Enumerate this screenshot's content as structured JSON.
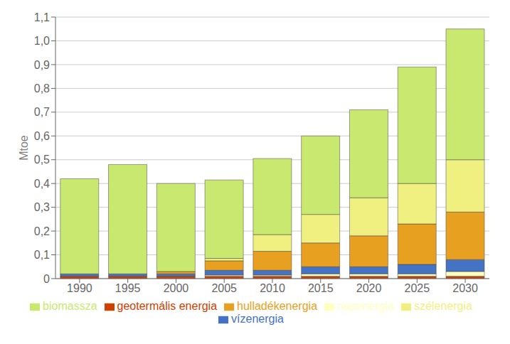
{
  "chart_data": {
    "type": "bar",
    "stacked": true,
    "categories": [
      "1990",
      "1995",
      "2000",
      "2005",
      "2010",
      "2015",
      "2020",
      "2025",
      "2030"
    ],
    "series": [
      {
        "name": "geotermális energia",
        "color": "#d04000",
        "values": [
          0.01,
          0.01,
          0.01,
          0.01,
          0.01,
          0.01,
          0.01,
          0.01,
          0.01
        ]
      },
      {
        "name": "napenergia",
        "color": "#ffffc0",
        "values": [
          0.0,
          0.0,
          0.0,
          0.005,
          0.005,
          0.01,
          0.01,
          0.01,
          0.02
        ]
      },
      {
        "name": "vízenergia",
        "color": "#4472c4",
        "values": [
          0.01,
          0.01,
          0.01,
          0.02,
          0.02,
          0.03,
          0.03,
          0.04,
          0.05
        ]
      },
      {
        "name": "hulladékenergia",
        "color": "#e8a020",
        "values": [
          0.0,
          0.0,
          0.01,
          0.04,
          0.08,
          0.1,
          0.13,
          0.17,
          0.2
        ]
      },
      {
        "name": "szélenergia",
        "color": "#f0f080",
        "values": [
          0.0,
          0.0,
          0.0,
          0.01,
          0.07,
          0.12,
          0.16,
          0.17,
          0.22
        ]
      },
      {
        "name": "biomassza",
        "color": "#c8e870",
        "values": [
          0.4,
          0.46,
          0.37,
          0.33,
          0.32,
          0.33,
          0.37,
          0.49,
          0.55
        ]
      }
    ],
    "ylabel": "Mtoe",
    "ylim": [
      0,
      1.1
    ],
    "yticks": [
      0,
      {
        "value": 0.1,
        "label": "0,1"
      },
      {
        "value": 0.2,
        "label": "0,2"
      },
      {
        "value": 0.3,
        "label": "0,3"
      },
      {
        "value": 0.4,
        "label": "0,4"
      },
      {
        "value": 0.5,
        "label": "0,5"
      },
      {
        "value": 0.6,
        "label": "0,6"
      },
      {
        "value": 0.7,
        "label": "0,7"
      },
      {
        "value": 0.8,
        "label": "0,8"
      },
      {
        "value": 0.9,
        "label": "0,9"
      },
      {
        "value": 1,
        "label": "1,0"
      },
      {
        "value": 1.1,
        "label": "1,1"
      }
    ],
    "grid": true,
    "legend": "bottom"
  }
}
